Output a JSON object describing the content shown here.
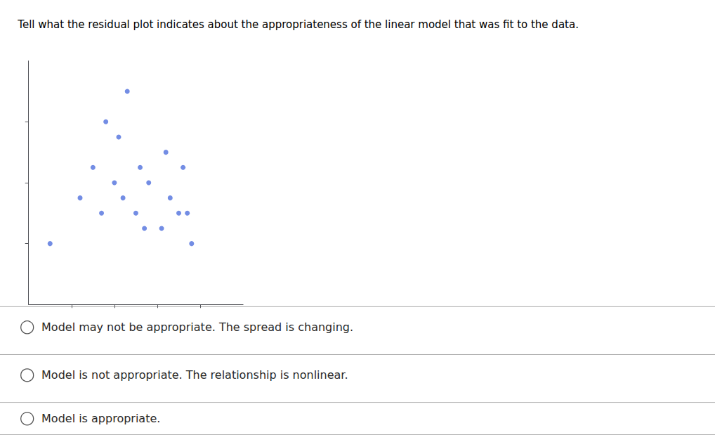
{
  "chart_data": {
    "type": "scatter",
    "title": "Tell what the residual plot indicates about the appropriateness of the linear model that was fit to the data.",
    "x": [
      0.5,
      1.2,
      1.5,
      1.7,
      1.8,
      2.0,
      2.1,
      2.2,
      2.3,
      2.5,
      2.6,
      2.7,
      2.8,
      3.1,
      3.2,
      3.3,
      3.5,
      3.6,
      3.7,
      3.8
    ],
    "values": [
      2.0,
      3.5,
      4.5,
      3.0,
      6.0,
      4.0,
      5.5,
      3.5,
      7.0,
      3.0,
      4.5,
      2.5,
      4.0,
      2.5,
      5.0,
      3.5,
      3.0,
      4.5,
      3.0,
      2.0
    ],
    "xlim": [
      0,
      5.0
    ],
    "ylim": [
      0,
      8.0
    ],
    "xticks": [
      1,
      2,
      3,
      4
    ],
    "yticks": [
      2,
      4,
      6
    ],
    "tick_labels": false,
    "grid": false,
    "marker": "circle",
    "annotations": [
      "Model may not be appropriate. The spread is changing.",
      "Model is not appropriate. The relationship is nonlinear.",
      "Model is appropriate."
    ]
  }
}
